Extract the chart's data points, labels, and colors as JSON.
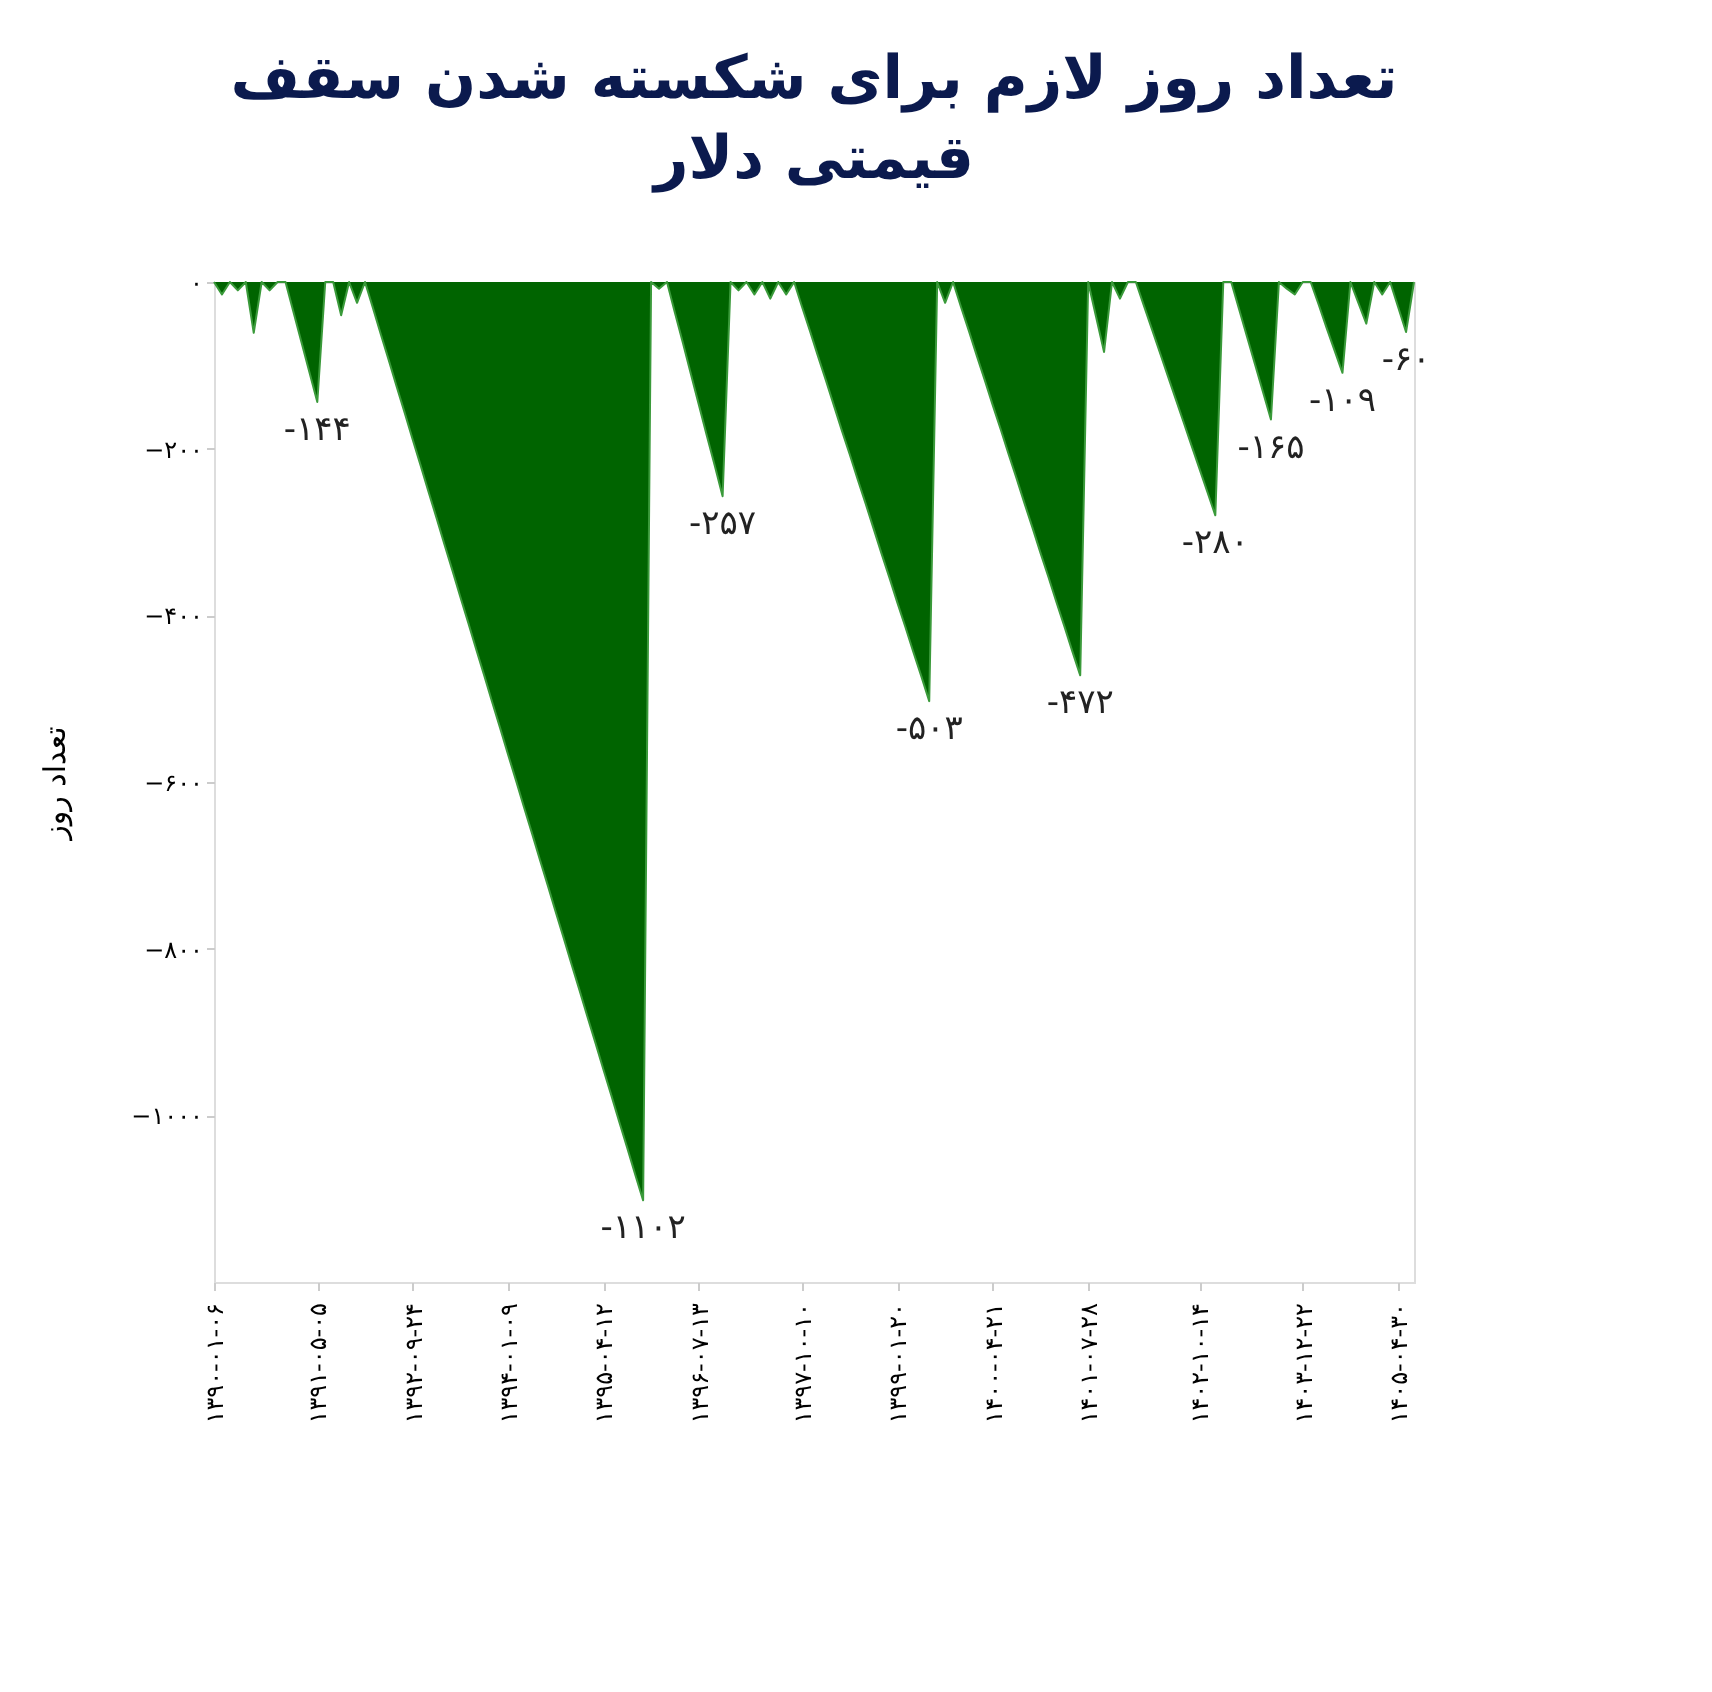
{
  "chart_data": {
    "type": "area",
    "title": "تعداد روز لازم برای شکسته شدن سقف قیمتی دلار",
    "ylabel": "تعداد روز",
    "categories": [
      "۱۳۹۰-۰۱-۰۶",
      null,
      null,
      null,
      null,
      null,
      null,
      null,
      null,
      null,
      null,
      null,
      null,
      "۱۳۹۱-۰۵-۰۵",
      null,
      null,
      null,
      null,
      null,
      null,
      null,
      null,
      null,
      null,
      null,
      "۱۳۹۲-۰۹-۲۴",
      null,
      null,
      null,
      null,
      null,
      null,
      null,
      null,
      null,
      null,
      null,
      "۱۳۹۴-۰۱-۰۹",
      null,
      null,
      null,
      null,
      null,
      null,
      null,
      null,
      null,
      null,
      null,
      "۱۳۹۵-۰۴-۱۲",
      null,
      null,
      null,
      null,
      null,
      null,
      null,
      null,
      null,
      null,
      null,
      "۱۳۹۶-۰۷-۱۳",
      null,
      null,
      null,
      null,
      null,
      null,
      null,
      null,
      null,
      null,
      null,
      null,
      "۱۳۹۷-۱۰-۱۰",
      null,
      null,
      null,
      null,
      null,
      null,
      null,
      null,
      null,
      null,
      null,
      "۱۳۹۹-۰۱-۲۰",
      null,
      null,
      null,
      null,
      null,
      null,
      null,
      null,
      null,
      null,
      null,
      "۱۴۰۰-۰۴-۲۱",
      null,
      null,
      null,
      null,
      null,
      null,
      null,
      null,
      null,
      null,
      null,
      "۱۴۰۱-۰۷-۲۸",
      null,
      null,
      null,
      null,
      null,
      null,
      null,
      null,
      null,
      null,
      null,
      null,
      null,
      "۱۴۰۲-۱۰-۱۴",
      null,
      null,
      null,
      null,
      null,
      null,
      null,
      null,
      null,
      null,
      null,
      null,
      "۱۴۰۳-۱۲-۲۲",
      null,
      null,
      null,
      null,
      null,
      null,
      null,
      null,
      null,
      null,
      null,
      "۱۴۰۵-۰۴-۳۰",
      null,
      null
    ],
    "series": [
      {
        "color": "#006400",
        "values": [
          0,
          -15,
          0,
          -10,
          0,
          -61,
          0,
          -10,
          0,
          0,
          -36,
          -72,
          -108,
          -144,
          0,
          0,
          -40,
          0,
          -25,
          0,
          -31,
          -63,
          -94,
          -126,
          -157,
          -189,
          -220,
          -252,
          -283,
          -315,
          -346,
          -378,
          -409,
          -441,
          -472,
          -504,
          -535,
          -567,
          -598,
          -630,
          -661,
          -693,
          -724,
          -756,
          -787,
          -819,
          -850,
          -882,
          -913,
          -945,
          -976,
          -1008,
          -1039,
          -1071,
          -1102,
          0,
          -8,
          0,
          -37,
          -73,
          -110,
          -147,
          -184,
          -220,
          -257,
          0,
          -10,
          0,
          -15,
          0,
          -20,
          0,
          -15,
          0,
          -30,
          -59,
          -89,
          -118,
          -148,
          -178,
          -207,
          -237,
          -266,
          -296,
          -326,
          -355,
          -385,
          -414,
          -444,
          -473,
          -503,
          0,
          -25,
          0,
          -30,
          -59,
          -89,
          -118,
          -148,
          -177,
          -207,
          -236,
          -266,
          -295,
          -325,
          -354,
          -384,
          -413,
          -443,
          -472,
          0,
          -42,
          -84,
          0,
          -20,
          0,
          0,
          -28,
          -56,
          -84,
          -112,
          -140,
          -168,
          -196,
          -224,
          -252,
          -280,
          0,
          0,
          -33,
          -66,
          -99,
          -132,
          -165,
          0,
          -8,
          -15,
          0,
          0,
          -27,
          -55,
          -82,
          -109,
          0,
          -25,
          -50,
          0,
          -15,
          0,
          -30,
          -60,
          0
        ]
      }
    ],
    "ylim": [
      -1200,
      0
    ],
    "yticks": [
      {
        "value": 0,
        "label": "۰"
      },
      {
        "value": -200,
        "label": "−۲۰۰"
      },
      {
        "value": -400,
        "label": "−۴۰۰"
      },
      {
        "value": -600,
        "label": "−۶۰۰"
      },
      {
        "value": -800,
        "label": "−۸۰۰"
      },
      {
        "value": -1000,
        "label": "−۱۰۰۰"
      }
    ],
    "annotations": [
      {
        "text": "-۱۴۴",
        "y": -144
      },
      {
        "text": "-۱۱۰۲",
        "y": -1102
      },
      {
        "text": "-۲۵۷",
        "y": -257
      },
      {
        "text": "-۵۰۳",
        "y": -503
      },
      {
        "text": "-۴۷۲",
        "y": -472
      },
      {
        "text": "-۲۸۰",
        "y": -280
      },
      {
        "text": "-۱۶۵",
        "y": -165
      },
      {
        "text": "-۱۰۹",
        "y": -109
      },
      {
        "text": "-۶۰",
        "y": -60
      }
    ],
    "grid": false
  }
}
